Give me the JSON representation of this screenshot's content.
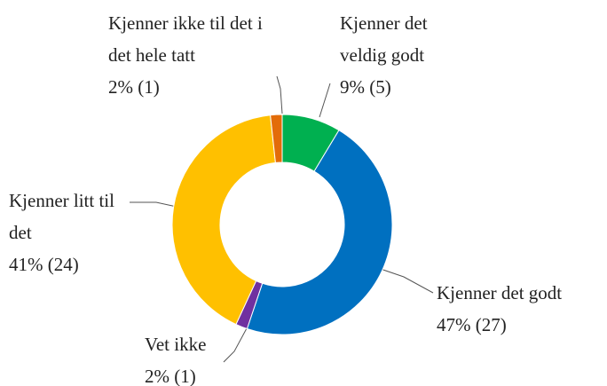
{
  "chart_data": {
    "type": "donut",
    "categories": [
      "Kjenner det veldig godt",
      "Kjenner det godt",
      "Vet ikke",
      "Kjenner litt til det",
      "Kjenner ikke til det i det hele tatt"
    ],
    "values": [
      9,
      47,
      2,
      41,
      2
    ],
    "counts": [
      5,
      27,
      1,
      24,
      1
    ],
    "value_labels": [
      "9% (5)",
      "47% (27)",
      "2% (1)",
      "41% (24)",
      "2% (1)"
    ],
    "colors": [
      "#00b050",
      "#0070c0",
      "#7030a0",
      "#ffc000",
      "#e36c09"
    ]
  }
}
